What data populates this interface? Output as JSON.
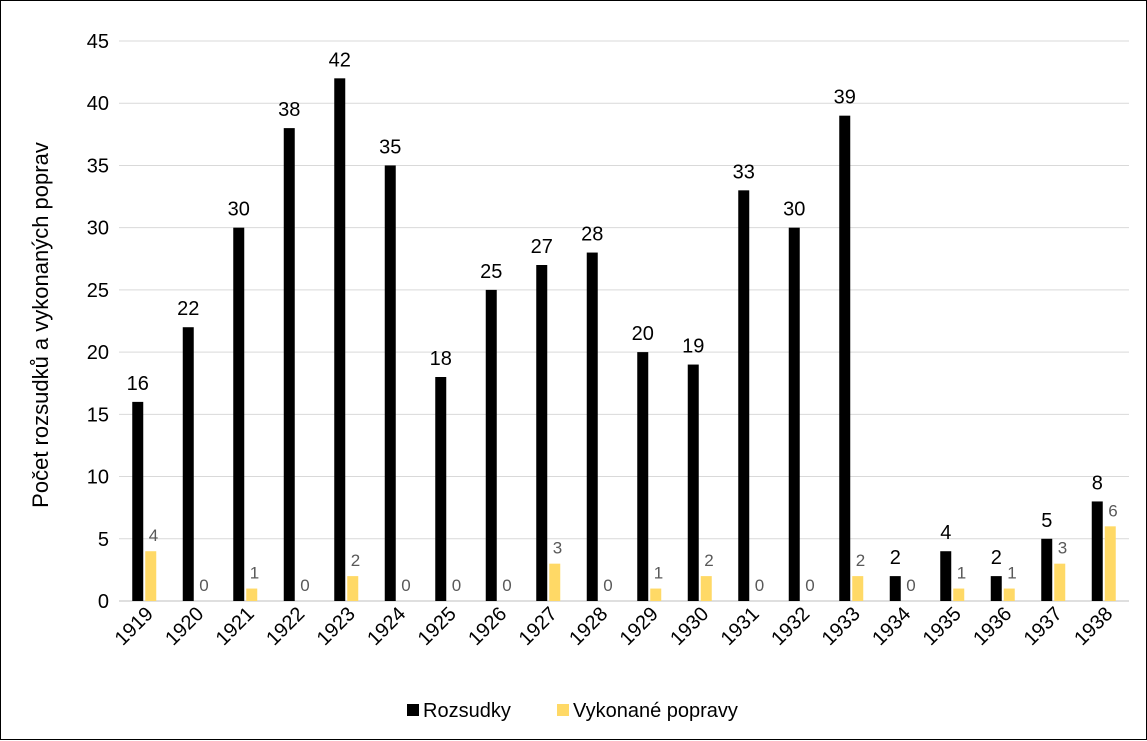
{
  "chart_data": {
    "type": "bar",
    "title": "",
    "xlabel": "",
    "ylabel": "Počet rozsudků a vykonaných poprav",
    "ylim": [
      0,
      45
    ],
    "yticks": [
      0,
      5,
      10,
      15,
      20,
      25,
      30,
      35,
      40,
      45
    ],
    "grid": true,
    "legend_position": "bottom",
    "categories": [
      "1919",
      "1920",
      "1921",
      "1922",
      "1923",
      "1924",
      "1925",
      "1926",
      "1927",
      "1928",
      "1929",
      "1930",
      "1931",
      "1932",
      "1933",
      "1934",
      "1935",
      "1936",
      "1937",
      "1938"
    ],
    "series": [
      {
        "name": "Rozsudky",
        "color": "#000000",
        "values": [
          16,
          22,
          30,
          38,
          42,
          35,
          18,
          25,
          27,
          28,
          20,
          19,
          33,
          30,
          39,
          2,
          4,
          2,
          5,
          8
        ]
      },
      {
        "name": "Vykonané popravy",
        "color": "#FFD966",
        "values": [
          4,
          0,
          1,
          0,
          2,
          0,
          0,
          0,
          3,
          0,
          1,
          2,
          0,
          0,
          2,
          0,
          1,
          1,
          3,
          6
        ]
      }
    ],
    "data_label_colors": [
      "#000000",
      "#595959"
    ]
  }
}
